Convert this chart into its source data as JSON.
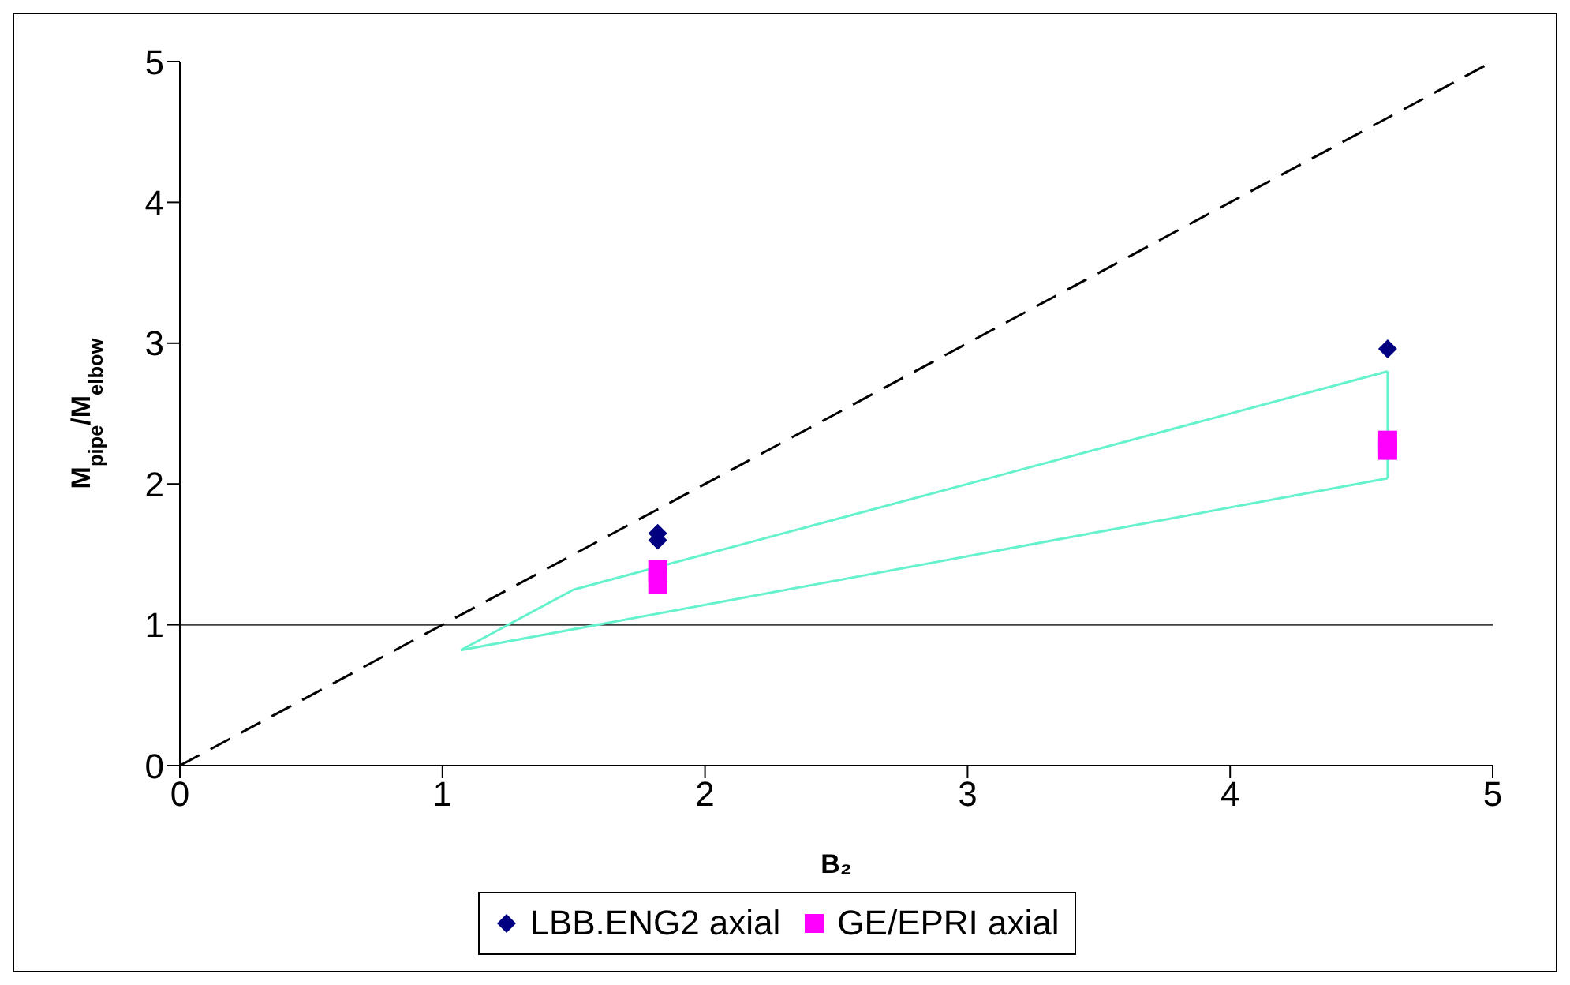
{
  "chart_data": {
    "type": "scatter",
    "xlabel": "B₂",
    "ylabel": "M$_{pipe}$/M$_{elbow}$",
    "xlim": [
      0,
      5
    ],
    "xticks": [
      0,
      1,
      2,
      3,
      4,
      5
    ],
    "ylim": [
      0,
      5
    ],
    "yticks": [
      0,
      1,
      2,
      3,
      4,
      5
    ],
    "grid": false,
    "legend": "bottom",
    "ref_lines": [
      {
        "axis": "y",
        "value": 1,
        "color": "#404040",
        "line_style": "solid"
      }
    ],
    "series": [
      {
        "type": "line",
        "color": "#000000",
        "line_style": "dashed",
        "marker": "none",
        "x": [
          0,
          5
        ],
        "values": [
          0,
          5
        ]
      },
      {
        "type": "line",
        "color": "#66f2cc",
        "line_style": "solid",
        "marker": "none",
        "x": [
          1.07,
          1.5,
          4.6
        ],
        "values": [
          0.82,
          1.25,
          2.8
        ]
      },
      {
        "type": "line",
        "color": "#66f2cc",
        "line_style": "solid",
        "marker": "none",
        "x": [
          1.07,
          4.6
        ],
        "values": [
          0.82,
          2.04
        ]
      },
      {
        "type": "line",
        "color": "#66f2cc",
        "line_style": "solid",
        "marker": "none",
        "x": [
          4.6,
          4.6
        ],
        "values": [
          2.04,
          2.8
        ]
      },
      {
        "name": "LBB.ENG2 axial",
        "color": "#000080",
        "marker": "diamond",
        "x": [
          1.82,
          1.82,
          4.6
        ],
        "values": [
          1.65,
          1.6,
          2.96
        ]
      },
      {
        "name": "GE/EPRI axial",
        "color": "#ff00ff",
        "marker": "square",
        "x": [
          1.82,
          1.82,
          4.6,
          4.6
        ],
        "values": [
          1.38,
          1.3,
          2.3,
          2.25
        ]
      }
    ]
  }
}
